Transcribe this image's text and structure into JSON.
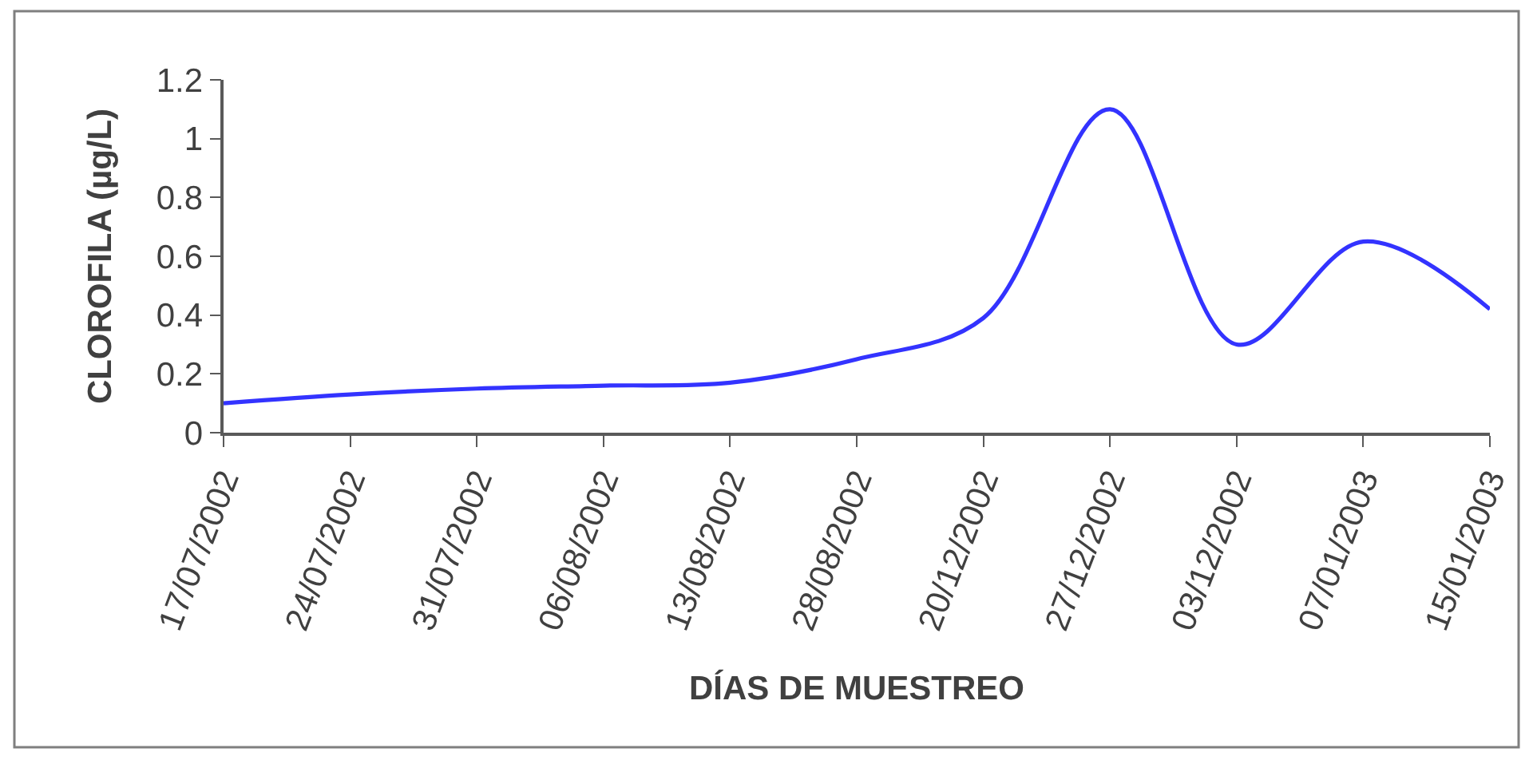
{
  "chart_data": {
    "type": "line",
    "xlabel": "DÍAS DE MUESTREO",
    "ylabel": "CLOROFILA (µg/L)",
    "categories": [
      "17/07/2002",
      "24/07/2002",
      "31/07/2002",
      "06/08/2002",
      "13/08/2002",
      "28/08/2002",
      "20/12/2002",
      "27/12/2002",
      "03/12/2002",
      "07/01/2003",
      "15/01/2003"
    ],
    "series": [
      {
        "color": "#3333ff",
        "values": [
          0.1,
          0.13,
          0.15,
          0.16,
          0.17,
          0.25,
          0.39,
          1.1,
          0.3,
          0.65,
          0.42
        ]
      }
    ],
    "ylim": [
      0,
      1.2
    ],
    "yticks": [
      0,
      0.2,
      0.4,
      0.6,
      0.8,
      1,
      1.2
    ],
    "marker": "none",
    "line_style": "solid"
  }
}
